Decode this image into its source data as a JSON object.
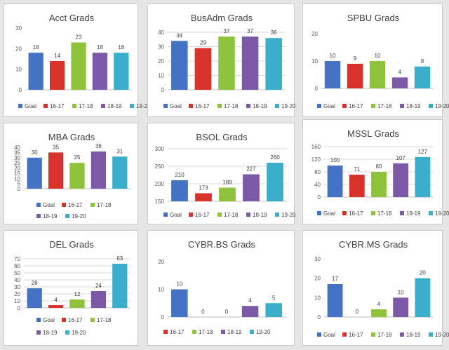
{
  "legend": [
    {
      "name": "Goal",
      "color": "#4472c4"
    },
    {
      "name": "16-17",
      "color": "#d9312b"
    },
    {
      "name": "17-18",
      "color": "#8fc33b"
    },
    {
      "name": "18-19",
      "color": "#7b59a8"
    },
    {
      "name": "19-20",
      "color": "#3aaecb"
    }
  ],
  "chart_data": [
    {
      "type": "bar",
      "title": "Acct Grads",
      "categories": [
        "Goal",
        "16-17",
        "17-18",
        "18-19",
        "19-20"
      ],
      "values": [
        18,
        14,
        23,
        18,
        18
      ],
      "labels": [
        "18",
        "14",
        "23",
        "18",
        "18"
      ],
      "ylim": [
        0,
        30
      ],
      "ticks": [
        "0",
        "10",
        "20",
        "30"
      ],
      "legend_position": "bottom",
      "grid": false
    },
    {
      "type": "bar",
      "title": "BusAdm Grads",
      "categories": [
        "Goal",
        "16-17",
        "17-18",
        "18-19",
        "19-20"
      ],
      "values": [
        34,
        29,
        37,
        37,
        36
      ],
      "labels": [
        "34",
        "29",
        "37",
        "37",
        "36"
      ],
      "ylim": [
        0,
        40
      ],
      "ticks": [
        "0",
        "10",
        "20",
        "30",
        "40"
      ],
      "legend_position": "bottom",
      "grid": true
    },
    {
      "type": "bar",
      "title": "SPBU Grads",
      "categories": [
        "Goal",
        "16-17",
        "17-18",
        "18-19",
        "19-20"
      ],
      "values": [
        10,
        9,
        10,
        4,
        8
      ],
      "labels": [
        "10",
        "9",
        "10",
        "4",
        "8"
      ],
      "ylim": [
        0,
        20
      ],
      "ticks": [
        "0",
        "10",
        "20"
      ],
      "legend_position": "bottom",
      "grid": false
    },
    {
      "type": "bar",
      "title": "MBA Grads",
      "categories": [
        "Goal",
        "16-17",
        "17-18",
        "18-19",
        "19-20"
      ],
      "values": [
        30,
        35,
        25,
        36,
        31
      ],
      "labels": [
        "30",
        "35",
        "25",
        "36",
        "31"
      ],
      "ylim": [
        0,
        40
      ],
      "ticks": [
        "0",
        "5",
        "10",
        "15",
        "20",
        "25",
        "30",
        "35",
        "40"
      ],
      "legend_position": "bottom",
      "grid": false
    },
    {
      "type": "bar",
      "title": "BSOL Grads",
      "categories": [
        "Goal",
        "16-17",
        "17-18",
        "18-19",
        "19-20"
      ],
      "values": [
        210,
        173,
        189,
        227,
        260
      ],
      "labels": [
        "210",
        "173",
        "189",
        "227",
        "260"
      ],
      "ylim": [
        150,
        300
      ],
      "ticks": [
        "150",
        "200",
        "250",
        "300"
      ],
      "legend_position": "bottom",
      "grid": true
    },
    {
      "type": "bar",
      "title": "MSSL Grads",
      "categories": [
        "Goal",
        "16-17",
        "17-18",
        "18-19",
        "19-20"
      ],
      "values": [
        100,
        71,
        80,
        107,
        127
      ],
      "labels": [
        "100",
        "71",
        "80",
        "107",
        "127"
      ],
      "ylim": [
        0,
        160
      ],
      "ticks": [
        "0",
        "40",
        "80",
        "120",
        "160"
      ],
      "legend_position": "bottom",
      "grid": true
    },
    {
      "type": "bar",
      "title": "DEL Grads",
      "categories": [
        "Goal",
        "16-17",
        "17-18",
        "18-19",
        "19-20"
      ],
      "values": [
        28,
        4,
        12,
        24,
        63
      ],
      "labels": [
        "28",
        "4",
        "12",
        "24",
        "63"
      ],
      "ylim": [
        0,
        70
      ],
      "ticks": [
        "0",
        "10",
        "20",
        "30",
        "40",
        "50",
        "60",
        "70"
      ],
      "legend_position": "bottom",
      "grid": true
    },
    {
      "type": "bar",
      "title": "CYBR.BS Grads",
      "categories": [
        "Goal",
        "16-17",
        "17-18",
        "18-19",
        "19-20"
      ],
      "values": [
        10,
        0,
        0,
        4,
        5
      ],
      "labels": [
        "10",
        "0",
        "0",
        "4",
        "5"
      ],
      "ylim": [
        0,
        20
      ],
      "ticks": [
        "0",
        "10",
        "20"
      ],
      "legend_position": "bottom",
      "grid": false
    },
    {
      "type": "bar",
      "title": "CYBR.MS Grads",
      "categories": [
        "Goal",
        "16-17",
        "17-18",
        "18-19",
        "19-20"
      ],
      "values": [
        17,
        0,
        4,
        10,
        20
      ],
      "labels": [
        "17",
        "0",
        "4",
        "10",
        "20"
      ],
      "ylim": [
        0,
        30
      ],
      "ticks": [
        "0",
        "10",
        "20",
        "30"
      ],
      "legend_position": "bottom",
      "grid": false
    }
  ]
}
